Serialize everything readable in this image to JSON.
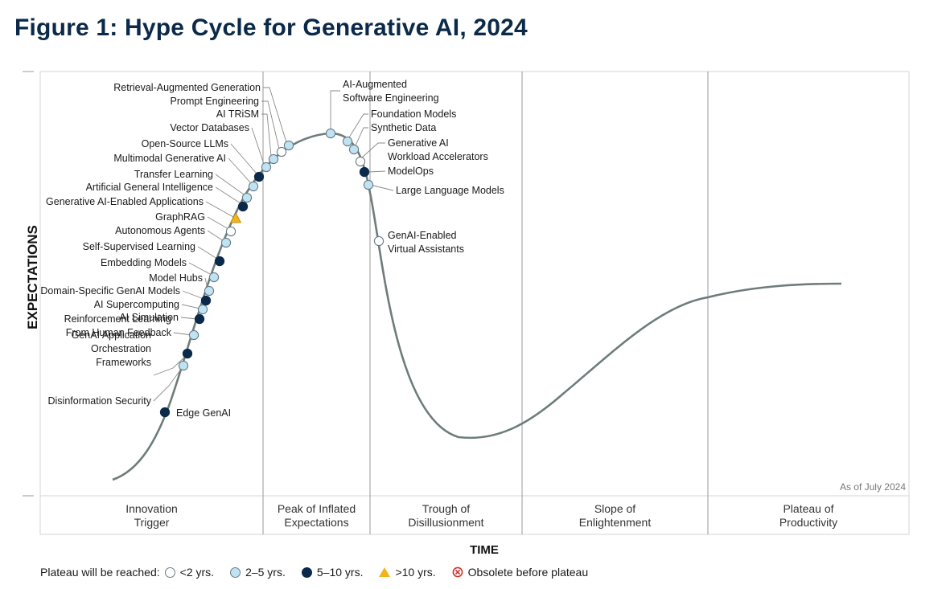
{
  "title": "Figure 1: Hype Cycle for Generative AI, 2024",
  "chart_data": {
    "type": "hype-cycle",
    "xlabel": "TIME",
    "ylabel": "EXPECTATIONS",
    "annotation": "As of July 2024",
    "phases": [
      {
        "name": "Innovation Trigger",
        "lines": [
          "Innovation",
          "Trigger"
        ]
      },
      {
        "name": "Peak of Inflated Expectations",
        "lines": [
          "Peak of Inflated",
          "Expectations"
        ]
      },
      {
        "name": "Trough of Disillusionment",
        "lines": [
          "Trough of",
          "Disillusionment"
        ]
      },
      {
        "name": "Slope of Enlightenment",
        "lines": [
          "Slope of",
          "Enlightenment"
        ]
      },
      {
        "name": "Plateau of Productivity",
        "lines": [
          "Plateau of",
          "Productivity"
        ]
      }
    ],
    "legend": {
      "label": "Plateau will be reached:",
      "entries": [
        {
          "key": "lt2",
          "label": "<2 yrs."
        },
        {
          "key": "2to5",
          "label": "2–5 yrs."
        },
        {
          "key": "5to10",
          "label": "5–10 yrs."
        },
        {
          "key": "gt10",
          "label": ">10 yrs."
        },
        {
          "key": "obsolete",
          "label": "Obsolete before plateau"
        }
      ]
    },
    "colors": {
      "lt2": "#ffffff",
      "2to5": "#bfe3f2",
      "5to10": "#0b2a4a",
      "gt10": "#f2b31c",
      "obsolete": "#d0342c",
      "curve": "#6f7c7c"
    },
    "technologies": [
      {
        "name": "Edge GenAI",
        "lines": [
          "Edge GenAI"
        ],
        "category": "5to10"
      },
      {
        "name": "Disinformation Security",
        "lines": [
          "Disinformation Security"
        ],
        "category": "2to5"
      },
      {
        "name": "GenAI Application Orchestration Frameworks",
        "lines": [
          "GenAI Application",
          "Orchestration",
          "Frameworks"
        ],
        "category": "5to10"
      },
      {
        "name": "Reinforcement Learning From Human Feedback",
        "lines": [
          "Reinforcement Learning",
          "From Human Feedback"
        ],
        "category": "2to5"
      },
      {
        "name": "AI Simulation",
        "lines": [
          "AI Simulation"
        ],
        "category": "5to10"
      },
      {
        "name": "AI Supercomputing",
        "lines": [
          "AI Supercomputing"
        ],
        "category": "2to5"
      },
      {
        "name": "Domain-Specific GenAI Models",
        "lines": [
          "Domain-Specific GenAI Models"
        ],
        "category": "5to10"
      },
      {
        "name": "Model Hubs",
        "lines": [
          "Model Hubs"
        ],
        "category": "2to5"
      },
      {
        "name": "Embedding Models",
        "lines": [
          "Embedding Models"
        ],
        "category": "2to5"
      },
      {
        "name": "Self-Supervised Learning",
        "lines": [
          "Self-Supervised Learning"
        ],
        "category": "5to10"
      },
      {
        "name": "Autonomous Agents",
        "lines": [
          "Autonomous Agents"
        ],
        "category": "2to5"
      },
      {
        "name": "GraphRAG",
        "lines": [
          "GraphRAG"
        ],
        "category": "lt2"
      },
      {
        "name": "Generative AI-Enabled Applications",
        "lines": [
          "Generative AI-Enabled Applications"
        ],
        "category": "gt10"
      },
      {
        "name": "Artificial General Intelligence",
        "lines": [
          "Artificial General Intelligence"
        ],
        "category": "5to10"
      },
      {
        "name": "Transfer Learning",
        "lines": [
          "Transfer Learning"
        ],
        "category": "2to5"
      },
      {
        "name": "Multimodal Generative AI",
        "lines": [
          "Multimodal Generative AI"
        ],
        "category": "2to5"
      },
      {
        "name": "Open-Source LLMs",
        "lines": [
          "Open-Source LLMs"
        ],
        "category": "5to10"
      },
      {
        "name": "Vector Databases",
        "lines": [
          "Vector Databases"
        ],
        "category": "2to5"
      },
      {
        "name": "AI TRiSM",
        "lines": [
          "AI TRiSM"
        ],
        "category": "2to5"
      },
      {
        "name": "Prompt Engineering",
        "lines": [
          "Prompt Engineering"
        ],
        "category": "lt2"
      },
      {
        "name": "Retrieval-Augmented Generation",
        "lines": [
          "Retrieval-Augmented Generation"
        ],
        "category": "2to5"
      },
      {
        "name": "AI-Augmented Software Engineering",
        "lines": [
          "AI-Augmented",
          "Software Engineering"
        ],
        "category": "2to5"
      },
      {
        "name": "Foundation Models",
        "lines": [
          "Foundation Models"
        ],
        "category": "2to5"
      },
      {
        "name": "Synthetic Data",
        "lines": [
          "Synthetic Data"
        ],
        "category": "2to5"
      },
      {
        "name": "Generative AI Workload Accelerators",
        "lines": [
          "Generative AI",
          "Workload Accelerators"
        ],
        "category": "lt2"
      },
      {
        "name": "ModelOps",
        "lines": [
          "ModelOps"
        ],
        "category": "5to10"
      },
      {
        "name": "Large Language Models",
        "lines": [
          "Large Language Models"
        ],
        "category": "2to5"
      },
      {
        "name": "GenAI-Enabled Virtual Assistants",
        "lines": [
          "GenAI-Enabled",
          "Virtual Assistants"
        ],
        "category": "lt2"
      }
    ]
  }
}
